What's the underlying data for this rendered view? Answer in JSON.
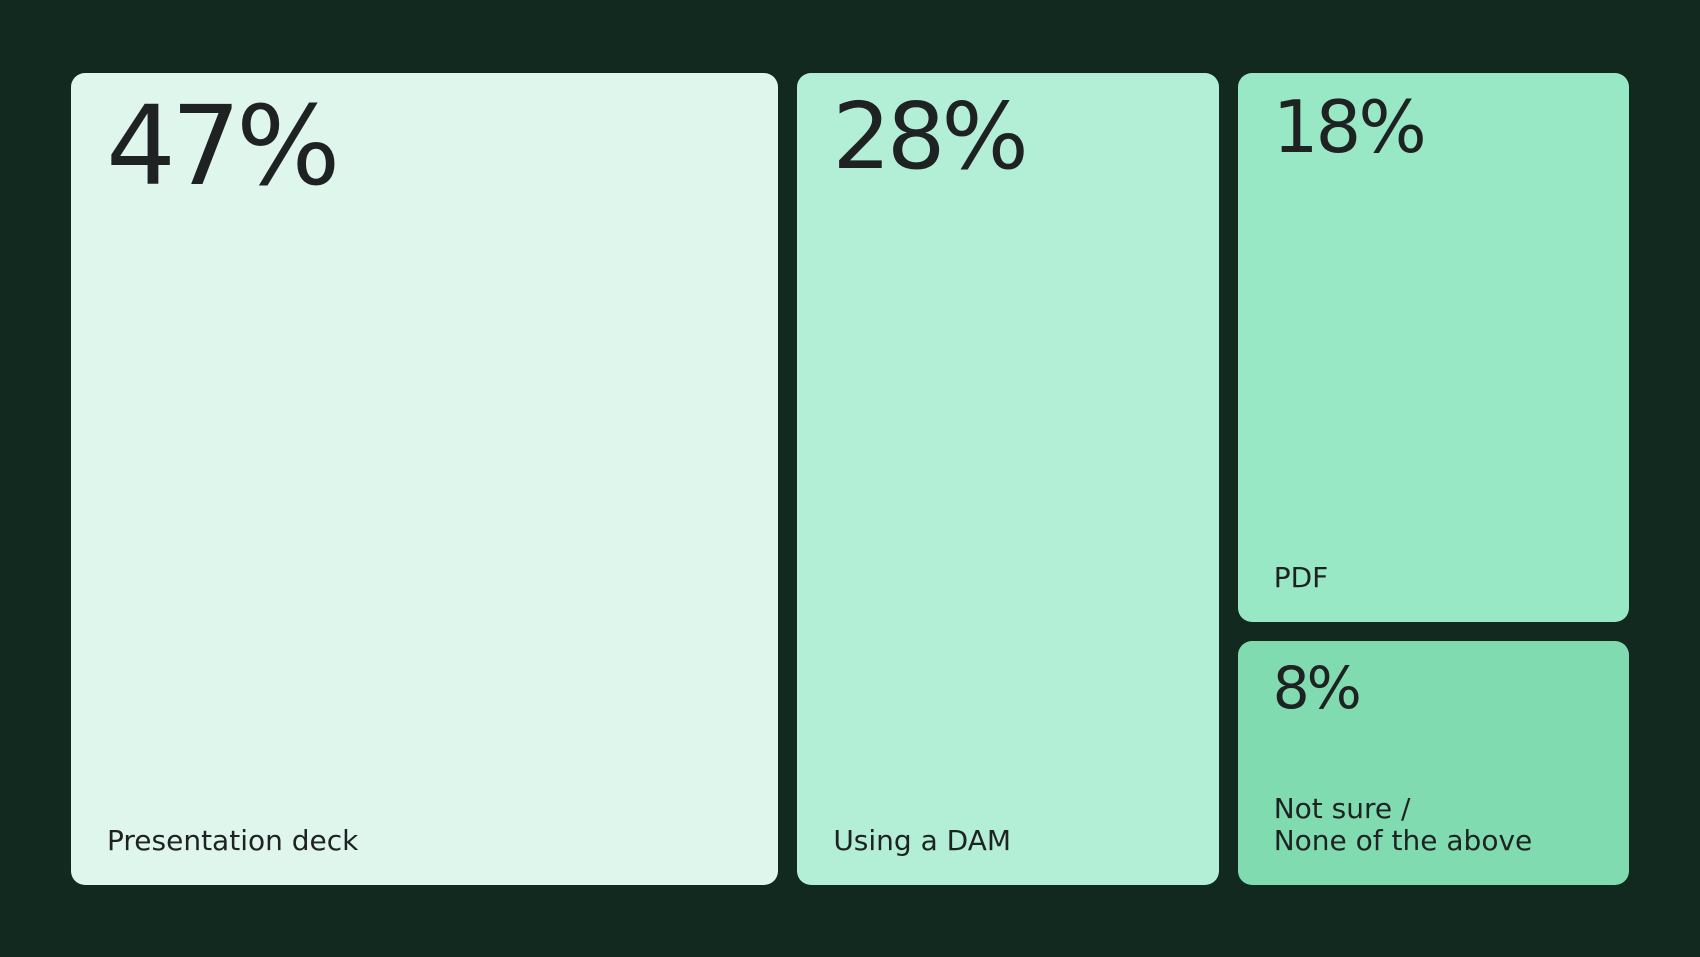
{
  "chart_data": {
    "type": "treemap",
    "categories": [
      "Presentation deck",
      "Using a DAM",
      "PDF",
      "Not sure / None of the above"
    ],
    "series": [
      {
        "values": [
          47,
          28,
          18,
          8
        ]
      }
    ],
    "data_labels": [
      "47%",
      "28%",
      "18%",
      "8%"
    ],
    "tiles": [
      {
        "pct_label": "47%",
        "category_label": "Presentation deck",
        "value": 47,
        "color": "#dff6ec"
      },
      {
        "pct_label": "28%",
        "category_label": "Using a DAM",
        "value": 28,
        "color": "#b2efd6"
      },
      {
        "pct_label": "18%",
        "category_label": "PDF",
        "value": 18,
        "color": "#98e7c5"
      },
      {
        "pct_label": "8%",
        "category_label": "Not sure /\nNone of the above",
        "value": 8,
        "color": "#80dcb0"
      }
    ]
  },
  "colors": {
    "background": "#11291f",
    "text": "#1f2222"
  }
}
